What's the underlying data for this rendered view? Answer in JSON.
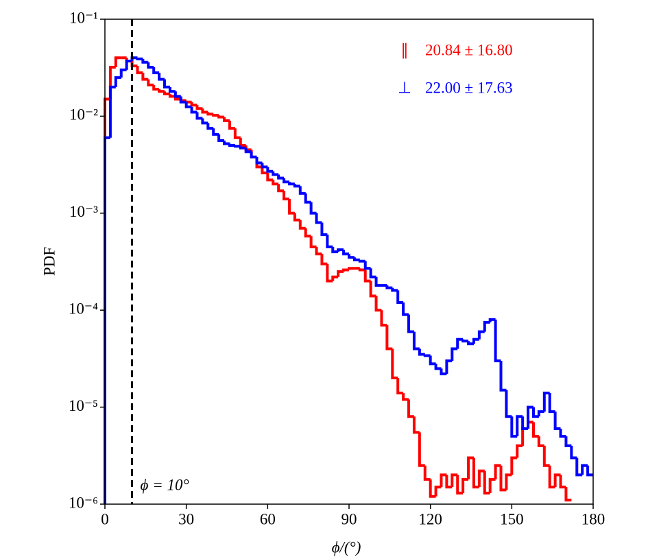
{
  "chart_data": {
    "type": "step-histogram",
    "xlabel": "ϕ/(°)",
    "ylabel": "PDF",
    "log_y": true,
    "legend": "upper right",
    "xlim": [
      0,
      180
    ],
    "ylim": [
      1e-06,
      0.1
    ],
    "xticks": [
      0,
      30,
      60,
      90,
      120,
      150,
      180
    ],
    "yticks": [
      {
        "value": 1e-06,
        "label": "10⁻⁶"
      },
      {
        "value": 1e-05,
        "label": "10⁻⁵"
      },
      {
        "value": 0.0001,
        "label": "10⁻⁴"
      },
      {
        "value": 0.001,
        "label": "10⁻³"
      },
      {
        "value": 0.01,
        "label": "10⁻²"
      },
      {
        "value": 0.1,
        "label": "10⁻¹"
      }
    ],
    "vline": {
      "x": 10,
      "label": "ϕ = 10°",
      "color": "#000000"
    },
    "bins": [
      0,
      2,
      4,
      6,
      8,
      10,
      12,
      14,
      16,
      18,
      20,
      22,
      24,
      26,
      28,
      30,
      32,
      34,
      36,
      38,
      40,
      42,
      44,
      46,
      48,
      50,
      52,
      54,
      56,
      58,
      60,
      62,
      64,
      66,
      68,
      70,
      72,
      74,
      76,
      78,
      80,
      82,
      84,
      86,
      88,
      90,
      92,
      94,
      96,
      98,
      100,
      102,
      104,
      106,
      108,
      110,
      112,
      114,
      116,
      118,
      120,
      122,
      124,
      126,
      128,
      130,
      132,
      134,
      136,
      138,
      140,
      142,
      144,
      146,
      148,
      150,
      152,
      154,
      156,
      158,
      160,
      162,
      164,
      166,
      168,
      170,
      172,
      174,
      176,
      178,
      180
    ],
    "series": [
      {
        "symbol": "∥",
        "name": "20.84 ± 16.80",
        "color": "#ff0000",
        "values": [
          0.015,
          0.032,
          0.04,
          0.04,
          0.037,
          0.033,
          0.028,
          0.024,
          0.021,
          0.019,
          0.018,
          0.017,
          0.016,
          0.015,
          0.0145,
          0.014,
          0.013,
          0.012,
          0.011,
          0.0105,
          0.0102,
          0.0098,
          0.009,
          0.0075,
          0.006,
          0.005,
          0.0045,
          0.0038,
          0.003,
          0.0026,
          0.0022,
          0.002,
          0.0017,
          0.0014,
          0.001,
          0.00085,
          0.0007,
          0.00058,
          0.00045,
          0.00038,
          0.0003,
          0.0002,
          0.00022,
          0.00025,
          0.00026,
          0.00027,
          0.00027,
          0.00026,
          0.0002,
          0.00014,
          0.0001,
          7e-05,
          4e-05,
          2e-05,
          1.4e-05,
          1.2e-05,
          8e-06,
          5.5e-06,
          2.5e-06,
          1.8e-06,
          1.2e-06,
          1.5e-06,
          2e-06,
          1.5e-06,
          2e-06,
          1.3e-06,
          1.8e-06,
          3e-06,
          1.5e-06,
          2.2e-06,
          1.3e-06,
          1.8e-06,
          2.5e-06,
          1.4e-06,
          2e-06,
          3e-06,
          4e-06,
          6e-06,
          7e-06,
          5e-06,
          4e-06,
          2.5e-06,
          1.5e-06,
          2e-06,
          1.5e-06,
          1.1e-06,
          null,
          null,
          null,
          null
        ]
      },
      {
        "symbol": "⊥",
        "name": "22.00 ± 17.63",
        "color": "#0000ff",
        "values": [
          0.006,
          0.02,
          0.025,
          0.03,
          0.037,
          0.04,
          0.039,
          0.036,
          0.032,
          0.028,
          0.024,
          0.02,
          0.018,
          0.016,
          0.014,
          0.0125,
          0.011,
          0.0095,
          0.0085,
          0.0075,
          0.0065,
          0.0056,
          0.0052,
          0.005,
          0.0049,
          0.0047,
          0.0043,
          0.0038,
          0.0033,
          0.003,
          0.0027,
          0.0025,
          0.0023,
          0.0021,
          0.002,
          0.0019,
          0.0016,
          0.0013,
          0.001,
          0.0008,
          0.0006,
          0.00045,
          0.0004,
          0.00042,
          0.00038,
          0.00035,
          0.00033,
          0.00032,
          0.00027,
          0.00022,
          0.00018,
          0.00018,
          0.00017,
          0.00016,
          0.00012,
          9e-05,
          6e-05,
          4e-05,
          3.5e-05,
          3.4e-05,
          2.8e-05,
          2.5e-05,
          2.2e-05,
          3e-05,
          4e-05,
          5e-05,
          4.8e-05,
          4.5e-05,
          5e-05,
          6e-05,
          7.5e-05,
          8e-05,
          3e-05,
          1.5e-05,
          8e-06,
          5e-06,
          8e-06,
          6e-06,
          1e-05,
          8e-06,
          9e-06,
          1.4e-05,
          9e-06,
          6e-06,
          5e-06,
          4e-06,
          3e-06,
          2e-06,
          2.5e-06,
          2e-06
        ]
      }
    ]
  }
}
